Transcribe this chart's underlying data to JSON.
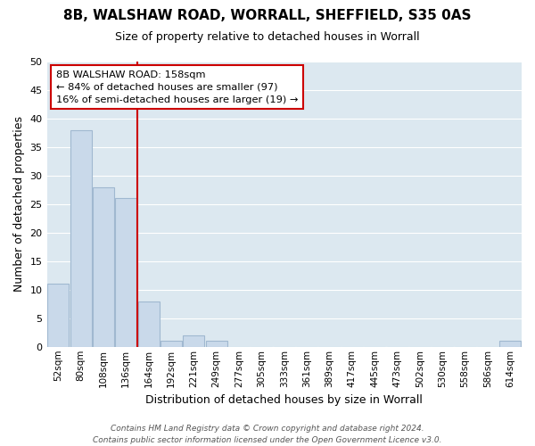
{
  "title": "8B, WALSHAW ROAD, WORRALL, SHEFFIELD, S35 0AS",
  "subtitle": "Size of property relative to detached houses in Worrall",
  "xlabel": "Distribution of detached houses by size in Worrall",
  "ylabel": "Number of detached properties",
  "bar_labels": [
    "52sqm",
    "80sqm",
    "108sqm",
    "136sqm",
    "164sqm",
    "192sqm",
    "221sqm",
    "249sqm",
    "277sqm",
    "305sqm",
    "333sqm",
    "361sqm",
    "389sqm",
    "417sqm",
    "445sqm",
    "473sqm",
    "502sqm",
    "530sqm",
    "558sqm",
    "586sqm",
    "614sqm"
  ],
  "bar_values": [
    11,
    38,
    28,
    26,
    8,
    1,
    2,
    1,
    0,
    0,
    0,
    0,
    0,
    0,
    0,
    0,
    0,
    0,
    0,
    0,
    1
  ],
  "bar_color": "#c9d9ea",
  "bar_edge_color": "#a0b8d0",
  "vline_color": "#cc0000",
  "annotation_text": "8B WALSHAW ROAD: 158sqm\n← 84% of detached houses are smaller (97)\n16% of semi-detached houses are larger (19) →",
  "annotation_box_color": "#ffffff",
  "annotation_box_edge": "#cc0000",
  "ylim": [
    0,
    50
  ],
  "yticks": [
    0,
    5,
    10,
    15,
    20,
    25,
    30,
    35,
    40,
    45,
    50
  ],
  "grid_color": "#ffffff",
  "plot_bg_color": "#dce8f0",
  "fig_bg_color": "#ffffff",
  "footer": "Contains HM Land Registry data © Crown copyright and database right 2024.\nContains public sector information licensed under the Open Government Licence v3.0."
}
